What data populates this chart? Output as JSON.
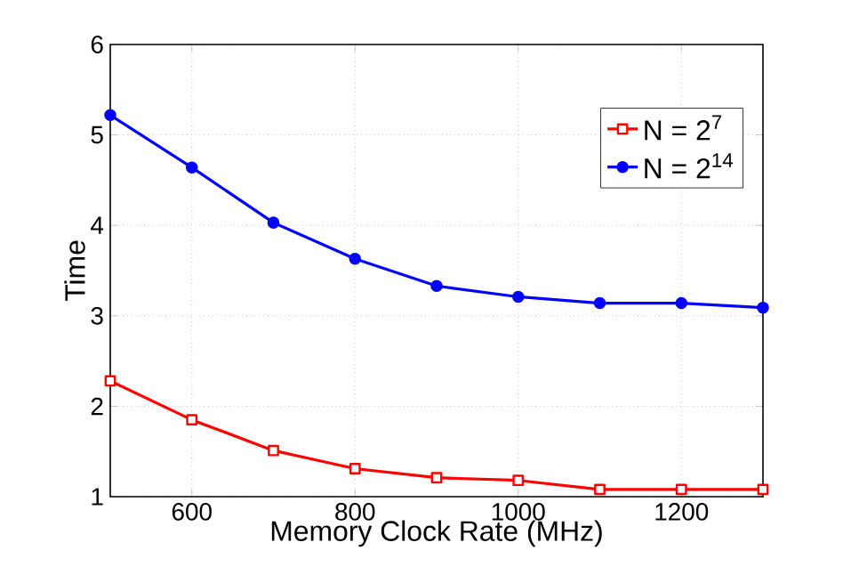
{
  "chart_data": {
    "type": "line",
    "xlabel": "Memory Clock Rate (MHz)",
    "ylabel": "Time",
    "x": [
      500,
      600,
      700,
      800,
      900,
      1000,
      1100,
      1200,
      1300
    ],
    "series": [
      {
        "name": "N = 2$^{7}$",
        "color": "#ff0000",
        "marker": "square",
        "values": [
          2.28,
          1.85,
          1.51,
          1.31,
          1.21,
          1.18,
          1.08,
          1.08,
          1.08
        ]
      },
      {
        "name": "N = 2$^{14}$",
        "color": "#0000ff",
        "marker": "circle",
        "values": [
          5.22,
          4.64,
          4.03,
          3.63,
          3.33,
          3.21,
          3.14,
          3.14,
          3.09
        ]
      }
    ],
    "xlim": [
      500,
      1300
    ],
    "ylim": [
      1,
      6
    ],
    "xticks": [
      600,
      800,
      1000,
      1200
    ],
    "yticks": [
      1,
      2,
      3,
      4,
      5,
      6
    ],
    "grid": true,
    "legend": "top right"
  }
}
